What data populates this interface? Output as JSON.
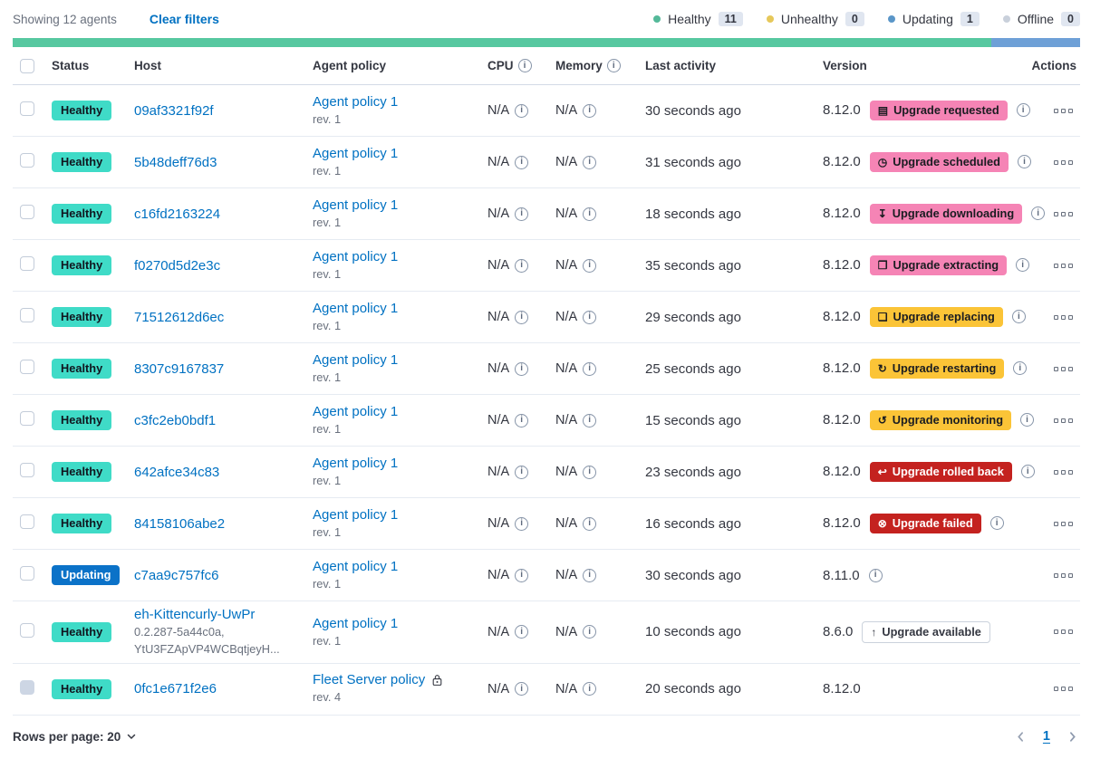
{
  "colors": {
    "link": "#0071C2",
    "text": "#343741",
    "subtext": "#69707D",
    "health_bar": {
      "healthy": "#57C8A0",
      "updating": "#6EA0D7"
    },
    "status": {
      "healthy": {
        "bg": "#3FDBC7",
        "text": "#10161F"
      },
      "updating": {
        "bg": "#0B72C8",
        "text": "#FFFFFF"
      }
    },
    "badge": {
      "accent": {
        "bg": "#F584B5",
        "text": "#1A1C21",
        "border": "none"
      },
      "warning": {
        "bg": "#FBC437",
        "text": "#1A1C21",
        "border": "none"
      },
      "danger": {
        "bg": "#C4221F",
        "text": "#FFFFFF",
        "border": "none"
      },
      "hollow": {
        "bg": "#FFFFFF",
        "text": "#343741",
        "border": "#CBD2DC"
      }
    }
  },
  "toolbar": {
    "showing": "Showing 12 agents",
    "clear_filters": "Clear filters"
  },
  "legend": [
    {
      "label": "Healthy",
      "count": "11",
      "dot": "#54B999"
    },
    {
      "label": "Unhealthy",
      "count": "0",
      "dot": "#E6C85A"
    },
    {
      "label": "Updating",
      "count": "1",
      "dot": "#5A96C8"
    },
    {
      "label": "Offline",
      "count": "0",
      "dot": "#C9D0DB"
    }
  ],
  "health_bar": [
    {
      "status": "healthy",
      "percent": 91.67
    },
    {
      "status": "updating",
      "percent": 8.33
    }
  ],
  "table": {
    "headers": {
      "status": "Status",
      "host": "Host",
      "policy": "Agent policy",
      "cpu": "CPU",
      "memory": "Memory",
      "last_activity": "Last activity",
      "version": "Version",
      "actions": "Actions"
    },
    "rows": [
      {
        "status": "Healthy",
        "status_type": "healthy",
        "host": "09af3321f92f",
        "host_sub": [],
        "policy": "Agent policy 1",
        "policy_rev": "rev. 1",
        "policy_locked": false,
        "cpu": "N/A",
        "memory": "N/A",
        "last_activity": "30 seconds ago",
        "version": "8.12.0",
        "upgrade": {
          "label": "Upgrade requested",
          "icon": "calendar-icon",
          "glyph": "▤",
          "color": "accent"
        },
        "version_info": true,
        "checkbox_disabled": false
      },
      {
        "status": "Healthy",
        "status_type": "healthy",
        "host": "5b48deff76d3",
        "host_sub": [],
        "policy": "Agent policy 1",
        "policy_rev": "rev. 1",
        "policy_locked": false,
        "cpu": "N/A",
        "memory": "N/A",
        "last_activity": "31 seconds ago",
        "version": "8.12.0",
        "upgrade": {
          "label": "Upgrade scheduled",
          "icon": "clock-icon",
          "glyph": "◷",
          "color": "accent"
        },
        "version_info": true,
        "checkbox_disabled": false
      },
      {
        "status": "Healthy",
        "status_type": "healthy",
        "host": "c16fd2163224",
        "host_sub": [],
        "policy": "Agent policy 1",
        "policy_rev": "rev. 1",
        "policy_locked": false,
        "cpu": "N/A",
        "memory": "N/A",
        "last_activity": "18 seconds ago",
        "version": "8.12.0",
        "upgrade": {
          "label": "Upgrade downloading",
          "icon": "download-icon",
          "glyph": "↧",
          "color": "accent"
        },
        "version_info": true,
        "checkbox_disabled": false
      },
      {
        "status": "Healthy",
        "status_type": "healthy",
        "host": "f0270d5d2e3c",
        "host_sub": [],
        "policy": "Agent policy 1",
        "policy_rev": "rev. 1",
        "policy_locked": false,
        "cpu": "N/A",
        "memory": "N/A",
        "last_activity": "35 seconds ago",
        "version": "8.12.0",
        "upgrade": {
          "label": "Upgrade extracting",
          "icon": "package-icon",
          "glyph": "❒",
          "color": "accent"
        },
        "version_info": true,
        "checkbox_disabled": false
      },
      {
        "status": "Healthy",
        "status_type": "healthy",
        "host": "71512612d6ec",
        "host_sub": [],
        "policy": "Agent policy 1",
        "policy_rev": "rev. 1",
        "policy_locked": false,
        "cpu": "N/A",
        "memory": "N/A",
        "last_activity": "29 seconds ago",
        "version": "8.12.0",
        "upgrade": {
          "label": "Upgrade replacing",
          "icon": "document-icon",
          "glyph": "❏",
          "color": "warning"
        },
        "version_info": true,
        "checkbox_disabled": false
      },
      {
        "status": "Healthy",
        "status_type": "healthy",
        "host": "8307c9167837",
        "host_sub": [],
        "policy": "Agent policy 1",
        "policy_rev": "rev. 1",
        "policy_locked": false,
        "cpu": "N/A",
        "memory": "N/A",
        "last_activity": "25 seconds ago",
        "version": "8.12.0",
        "upgrade": {
          "label": "Upgrade restarting",
          "icon": "refresh-icon",
          "glyph": "↻",
          "color": "warning"
        },
        "version_info": true,
        "checkbox_disabled": false
      },
      {
        "status": "Healthy",
        "status_type": "healthy",
        "host": "c3fc2eb0bdf1",
        "host_sub": [],
        "policy": "Agent policy 1",
        "policy_rev": "rev. 1",
        "policy_locked": false,
        "cpu": "N/A",
        "memory": "N/A",
        "last_activity": "15 seconds ago",
        "version": "8.12.0",
        "upgrade": {
          "label": "Upgrade monitoring",
          "icon": "time-refresh-icon",
          "glyph": "↺",
          "color": "warning"
        },
        "version_info": true,
        "checkbox_disabled": false
      },
      {
        "status": "Healthy",
        "status_type": "healthy",
        "host": "642afce34c83",
        "host_sub": [],
        "policy": "Agent policy 1",
        "policy_rev": "rev. 1",
        "policy_locked": false,
        "cpu": "N/A",
        "memory": "N/A",
        "last_activity": "23 seconds ago",
        "version": "8.12.0",
        "upgrade": {
          "label": "Upgrade rolled back",
          "icon": "return-arrow-icon",
          "glyph": "↩",
          "color": "danger"
        },
        "version_info": true,
        "checkbox_disabled": false
      },
      {
        "status": "Healthy",
        "status_type": "healthy",
        "host": "84158106abe2",
        "host_sub": [],
        "policy": "Agent policy 1",
        "policy_rev": "rev. 1",
        "policy_locked": false,
        "cpu": "N/A",
        "memory": "N/A",
        "last_activity": "16 seconds ago",
        "version": "8.12.0",
        "upgrade": {
          "label": "Upgrade failed",
          "icon": "cross-in-circle-icon",
          "glyph": "⊗",
          "color": "danger"
        },
        "version_info": true,
        "checkbox_disabled": false
      },
      {
        "status": "Updating",
        "status_type": "updating",
        "host": "c7aa9c757fc6",
        "host_sub": [],
        "policy": "Agent policy 1",
        "policy_rev": "rev. 1",
        "policy_locked": false,
        "cpu": "N/A",
        "memory": "N/A",
        "last_activity": "30 seconds ago",
        "version": "8.11.0",
        "upgrade": null,
        "version_info": true,
        "checkbox_disabled": false
      },
      {
        "status": "Healthy",
        "status_type": "healthy",
        "host": "eh-Kittencurly-UwPr",
        "host_sub": [
          "0.2.287-5a44c0a,",
          "YtU3FZApVP4WCBqtjeyH..."
        ],
        "policy": "Agent policy 1",
        "policy_rev": "rev. 1",
        "policy_locked": false,
        "cpu": "N/A",
        "memory": "N/A",
        "last_activity": "10 seconds ago",
        "version": "8.6.0",
        "upgrade": {
          "label": "Upgrade available",
          "icon": "arrow-up-icon",
          "glyph": "↑",
          "color": "hollow"
        },
        "version_info": false,
        "checkbox_disabled": false
      },
      {
        "status": "Healthy",
        "status_type": "healthy",
        "host": "0fc1e671f2e6",
        "host_sub": [],
        "policy": "Fleet Server policy",
        "policy_rev": "rev. 4",
        "policy_locked": true,
        "cpu": "N/A",
        "memory": "N/A",
        "last_activity": "20 seconds ago",
        "version": "8.12.0",
        "upgrade": null,
        "version_info": false,
        "checkbox_disabled": true
      }
    ]
  },
  "footer": {
    "rows_per_page": "Rows per page: 20",
    "page": "1"
  }
}
